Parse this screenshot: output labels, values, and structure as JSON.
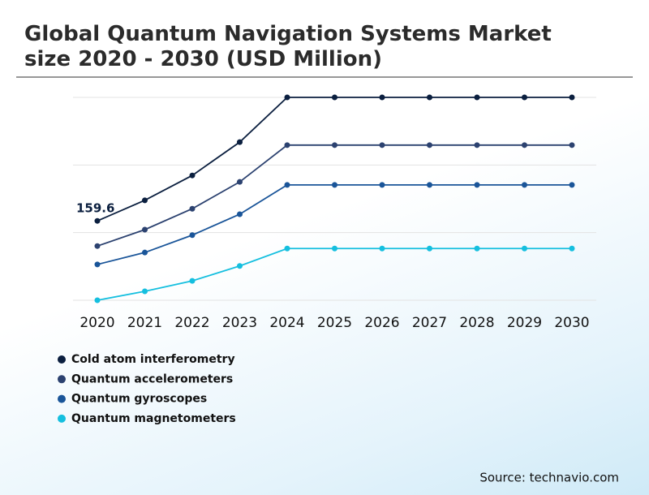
{
  "chart_data": {
    "type": "line",
    "title": "Global Quantum Navigation Systems Market size 2020 - 2030 (USD Million)",
    "categories": [
      "2020",
      "2021",
      "2022",
      "2023",
      "2024",
      "2025",
      "2026",
      "2027",
      "2028",
      "2029",
      "2030"
    ],
    "series": [
      {
        "name": "Cold atom interferometry",
        "color": "#0b1f3f",
        "values": [
          159.6,
          201,
          251,
          318,
          408,
          408,
          408,
          408,
          408,
          408,
          408
        ]
      },
      {
        "name": "Quantum accelerometers",
        "color": "#2c4270",
        "values": [
          109,
          142,
          184,
          238,
          312,
          312,
          312,
          312,
          312,
          312,
          312
        ]
      },
      {
        "name": "Quantum gyroscopes",
        "color": "#1a5599",
        "values": [
          72,
          96,
          131,
          173,
          232,
          232,
          232,
          232,
          232,
          232,
          232
        ]
      },
      {
        "name": "Quantum magnetometers",
        "color": "#15bfdf",
        "values": [
          0,
          18,
          39,
          69,
          104,
          104,
          104,
          104,
          104,
          104,
          104
        ]
      }
    ],
    "ylim": [
      0,
      408
    ],
    "yticks": [
      0,
      136,
      272,
      408
    ],
    "ytick_labels": false,
    "grid": true,
    "source": "Source: technavio.com"
  }
}
